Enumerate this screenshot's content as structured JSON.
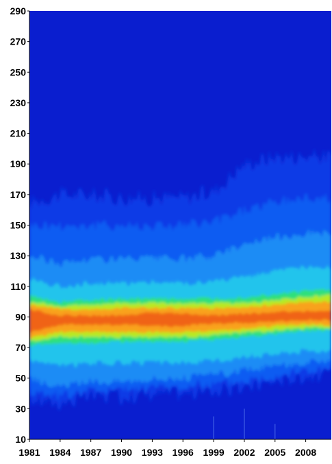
{
  "chart_data": {
    "type": "heatmap",
    "title": "",
    "xlabel": "",
    "ylabel": "",
    "x_ticks": [
      "1981",
      "1984",
      "1987",
      "1990",
      "1993",
      "1996",
      "1999",
      "2002",
      "2005",
      "2008"
    ],
    "y_ticks": [
      "10",
      "30",
      "50",
      "70",
      "90",
      "110",
      "130",
      "150",
      "170",
      "190",
      "210",
      "230",
      "250",
      "270",
      "290"
    ],
    "xlim": [
      1981,
      2010.5
    ],
    "ylim": [
      10,
      290
    ],
    "grid": false,
    "colorscale": [
      "#0a1ecf",
      "#0b3ae6",
      "#0f5cf2",
      "#1a8cf5",
      "#22c4ec",
      "#2ee07a",
      "#b8ea22",
      "#f7e21c",
      "#f9a21a",
      "#f06414"
    ],
    "background_color": "#0a1ecf",
    "band": {
      "x": [
        1981,
        1984,
        1987,
        1990,
        1993,
        1996,
        1999,
        2002,
        2005,
        2008,
        2010.5
      ],
      "peak_center": [
        87,
        88,
        87,
        88,
        88,
        87,
        88,
        89,
        90,
        91,
        91
      ],
      "red_lower": [
        80,
        85,
        85,
        85,
        84,
        84,
        86,
        86,
        87,
        88,
        88
      ],
      "red_upper": [
        95,
        91,
        91,
        91,
        93,
        92,
        91,
        92,
        93,
        94,
        94
      ],
      "orange_lower": [
        76,
        80,
        80,
        80,
        80,
        80,
        81,
        82,
        84,
        85,
        85
      ],
      "orange_upper": [
        98,
        95,
        95,
        96,
        96,
        96,
        96,
        96,
        98,
        100,
        100
      ],
      "yellow_lower": [
        74,
        77,
        77,
        77,
        77,
        77,
        78,
        80,
        81,
        83,
        83
      ],
      "yellow_upper": [
        100,
        97,
        98,
        99,
        99,
        99,
        99,
        99,
        101,
        103,
        104
      ],
      "green_lower": [
        71,
        73,
        73,
        74,
        74,
        74,
        75,
        77,
        79,
        81,
        81
      ],
      "green_upper": [
        104,
        100,
        101,
        102,
        102,
        102,
        102,
        103,
        105,
        107,
        108
      ],
      "cyan_lower": [
        62,
        58,
        60,
        60,
        60,
        60,
        61,
        64,
        66,
        68,
        68
      ],
      "cyan_upper": [
        115,
        110,
        112,
        112,
        113,
        112,
        113,
        116,
        120,
        122,
        122
      ],
      "sky_lower": [
        50,
        44,
        48,
        48,
        50,
        50,
        52,
        55,
        58,
        60,
        60
      ],
      "sky_upper": [
        130,
        125,
        128,
        128,
        128,
        128,
        130,
        138,
        142,
        145,
        145
      ],
      "mid_lower": [
        42,
        38,
        42,
        42,
        44,
        44,
        46,
        48,
        52,
        55,
        55
      ],
      "mid_upper": [
        150,
        150,
        150,
        150,
        150,
        150,
        152,
        160,
        165,
        168,
        168
      ],
      "outer_lower": [
        36,
        34,
        38,
        38,
        40,
        40,
        42,
        44,
        48,
        52,
        52
      ],
      "outer_upper": [
        165,
        170,
        170,
        168,
        168,
        168,
        172,
        190,
        195,
        195,
        195
      ]
    },
    "faint_spikes": [
      {
        "x": 1999,
        "y_top": 25
      },
      {
        "x": 2002,
        "y_top": 30
      },
      {
        "x": 2005,
        "y_top": 20
      }
    ]
  }
}
